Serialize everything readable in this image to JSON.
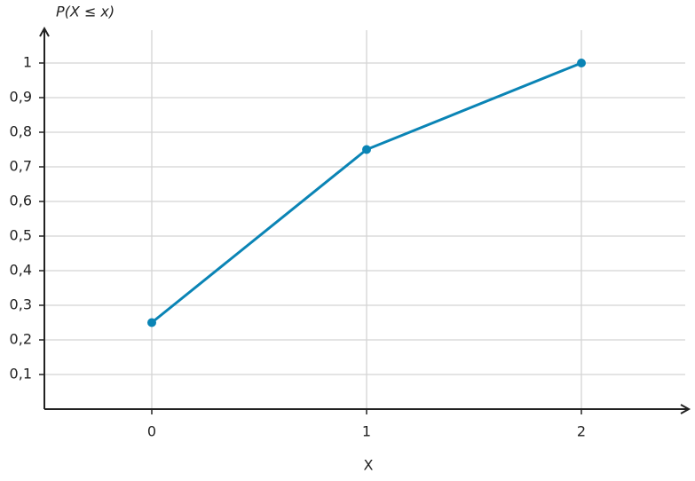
{
  "chart_data": {
    "type": "line",
    "x_label": "X",
    "y_label": "P(X ≤ x)",
    "x": [
      0,
      1,
      2
    ],
    "series": [
      {
        "color": "#0a84b5",
        "values": [
          0.25,
          0.75,
          1
        ]
      }
    ],
    "xlim": [
      -0.5,
      2.5
    ],
    "xticks": [
      0,
      1,
      2
    ],
    "ylim": [
      0,
      1.1
    ],
    "yticks": [
      {
        "value": 0.1,
        "label": "0,1"
      },
      {
        "value": 0.2,
        "label": "0,2"
      },
      {
        "value": 0.3,
        "label": "0,3"
      },
      {
        "value": 0.4,
        "label": "0,4"
      },
      {
        "value": 0.5,
        "label": "0,5"
      },
      {
        "value": 0.6,
        "label": "0,6"
      },
      {
        "value": 0.7,
        "label": "0,7"
      },
      {
        "value": 0.8,
        "label": "0,8"
      },
      {
        "value": 0.9,
        "label": "0,9"
      },
      1
    ],
    "grid": true
  }
}
